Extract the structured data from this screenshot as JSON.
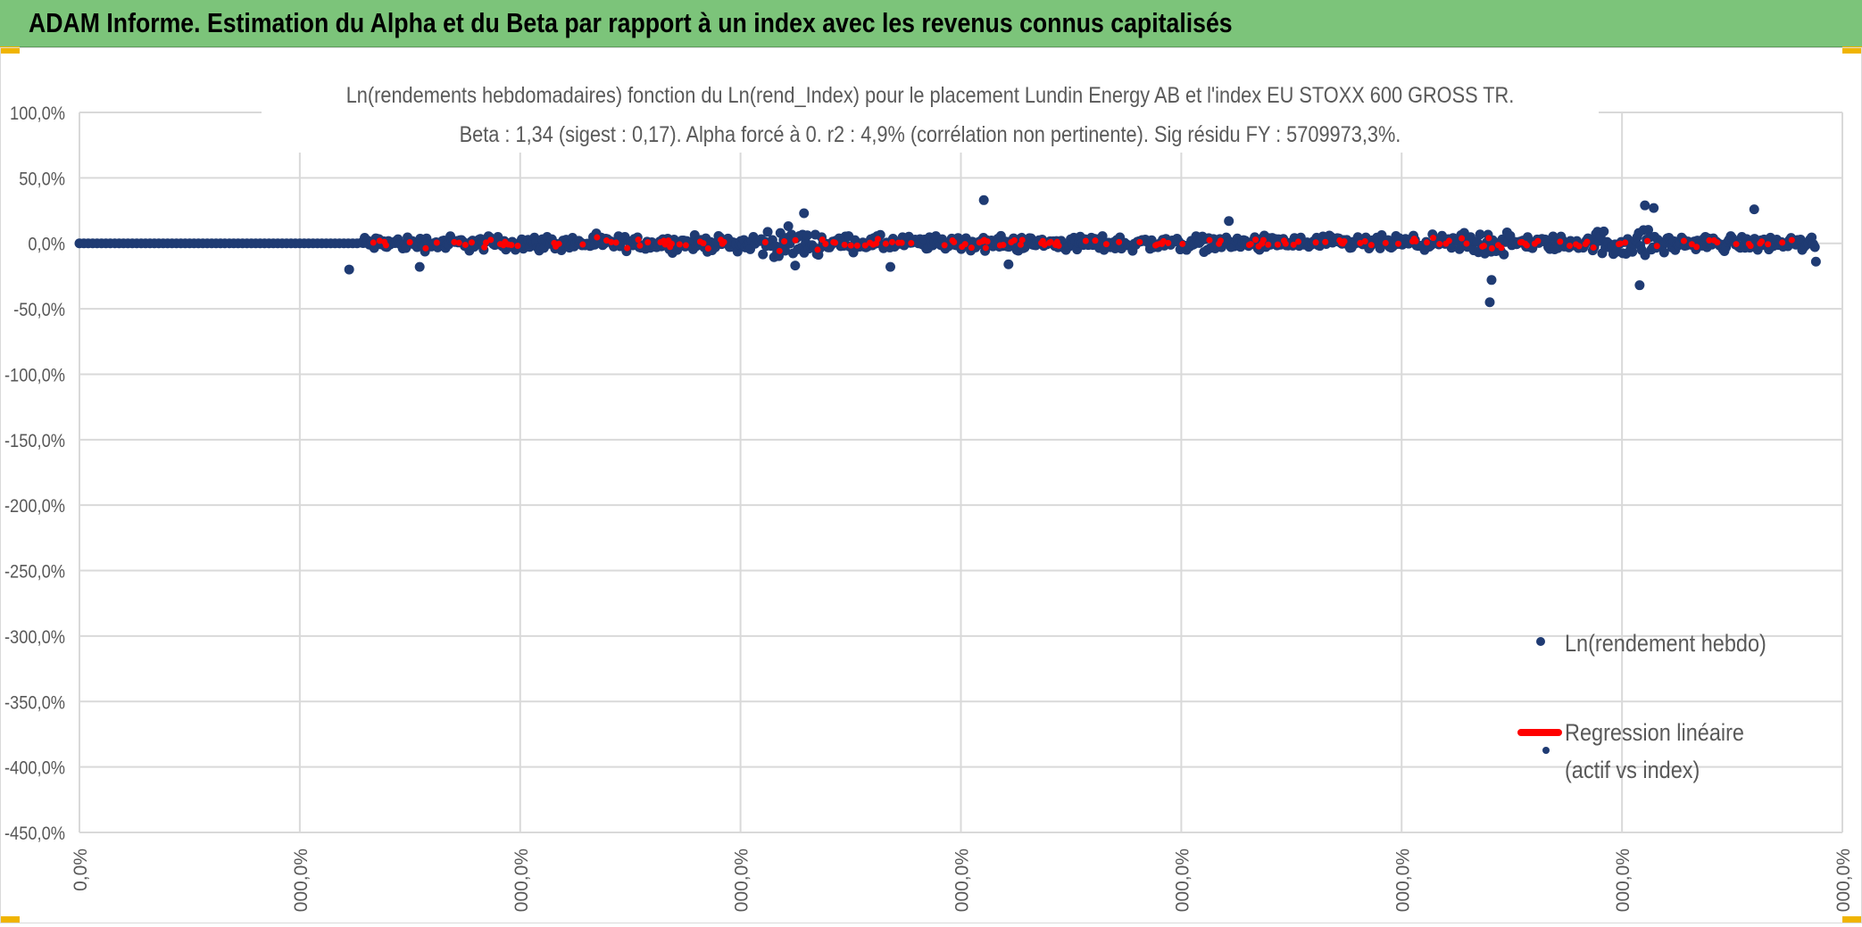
{
  "header": {
    "title": "ADAM Informe. Estimation du Alpha et du Beta par rapport à un index avec les revenus connus capitalisés"
  },
  "colors": {
    "header_bg": "#7cc47a",
    "points": "#1f3b73",
    "regression": "#ff0000",
    "grid": "#d9d9d9",
    "corner_accent": "#f0b400"
  },
  "chart_data": {
    "type": "scatter",
    "title_line1": "Ln(rendements hebdomadaires) fonction du Ln(rend_Index) pour le placement Lundin Energy AB et l'index EU STOXX 600 GROSS TR.",
    "title_line2": "Beta : 1,34 (sigest : 0,17). Alpha forcé à 0. r2 : 4,9% (corrélation non pertinente). Sig résidu FY : 5709973,3%.",
    "ylim": [
      -450,
      100
    ],
    "y_ticks": [
      "100,0%",
      "50,0%",
      "0,0%",
      "-50,0%",
      "-100,0%",
      "-150,0%",
      "-200,0%",
      "-250,0%",
      "-300,0%",
      "-350,0%",
      "-400,0%",
      "-450,0%"
    ],
    "x_ticks": [
      "0,0%",
      "000,0%",
      "000,0%",
      "000,0%",
      "000,0%",
      "000,0%",
      "000,0%",
      "000,0%",
      "000,0%"
    ],
    "grid": true,
    "legend_position": "right",
    "series": [
      {
        "name": "Ln(rendement hebdo)",
        "kind": "points",
        "color": "#1f3b73"
      },
      {
        "name": "Regression linéaire (actif vs index)",
        "kind": "line",
        "color": "#ff0000"
      }
    ],
    "notable_points": [
      {
        "x": 0.153,
        "y": -20
      },
      {
        "x": 0.193,
        "y": -18
      },
      {
        "x": 0.406,
        "y": -17
      },
      {
        "x": 0.411,
        "y": 23
      },
      {
        "x": 0.46,
        "y": -18
      },
      {
        "x": 0.513,
        "y": 33
      },
      {
        "x": 0.527,
        "y": -16
      },
      {
        "x": 0.652,
        "y": 17
      },
      {
        "x": 0.8,
        "y": -45
      },
      {
        "x": 0.801,
        "y": -28
      },
      {
        "x": 0.885,
        "y": -32
      },
      {
        "x": 0.888,
        "y": 29
      },
      {
        "x": 0.893,
        "y": 27
      },
      {
        "x": 0.95,
        "y": 26
      },
      {
        "x": 0.985,
        "y": -14
      }
    ]
  }
}
